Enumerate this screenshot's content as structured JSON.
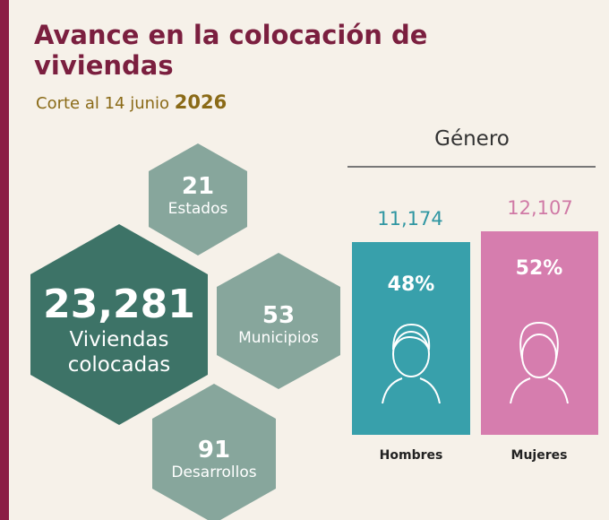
{
  "header": {
    "title": "Avance en la colocación de viviendas",
    "subtitle": "Corte al 14 junio",
    "year": "2026"
  },
  "stats": [
    {
      "value": "23,281",
      "label": "Viviendas colocadas"
    },
    {
      "value": "21",
      "label": "Estados"
    },
    {
      "value": "53",
      "label": "Municipios"
    },
    {
      "value": "91",
      "label": "Desarrollos"
    }
  ],
  "gender": {
    "title": "Género",
    "groups": [
      {
        "name": "Hombres",
        "count": "11,174",
        "percent": "48%"
      },
      {
        "name": "Mujeres",
        "count": "12,107",
        "percent": "52%"
      }
    ]
  }
}
